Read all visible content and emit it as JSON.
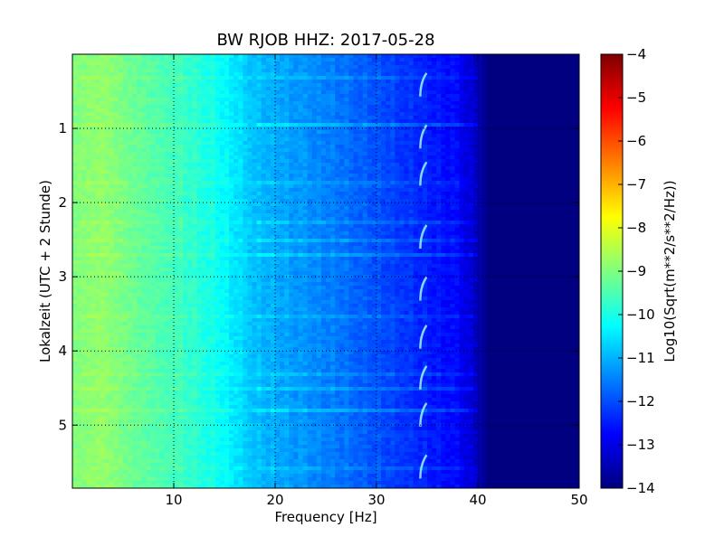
{
  "chart_data": {
    "type": "heatmap",
    "title": "BW RJOB HHZ: 2017-05-28",
    "xlabel": "Frequency [Hz]",
    "ylabel": "Lokalzeit (UTC + 2 Stunde)",
    "colorbar_label": "Log10(Sqrt(m**2/s**2/Hz))",
    "xlim": [
      0,
      50
    ],
    "ylim": [
      5.85,
      0
    ],
    "xticks": [
      10,
      20,
      30,
      40,
      50
    ],
    "xtick_labels": [
      "10",
      "20",
      "30",
      "40",
      "50"
    ],
    "yticks": [
      1,
      2,
      3,
      4,
      5
    ],
    "ytick_labels": [
      "1",
      "2",
      "3",
      "4",
      "5"
    ],
    "colorbar_range": [
      -14,
      -4
    ],
    "colorbar_ticks": [
      -4,
      -5,
      -6,
      -7,
      -8,
      -9,
      -10,
      -11,
      -12,
      -13,
      -14
    ],
    "colorbar_tick_labels": [
      "−4",
      "−5",
      "−6",
      "−7",
      "−8",
      "−9",
      "−10",
      "−11",
      "−12",
      "−13",
      "−14"
    ],
    "colormap": "jet",
    "grid": true,
    "profile": {
      "frequency": [
        0,
        3,
        6,
        10,
        14,
        18,
        22,
        26,
        30,
        34,
        38,
        40,
        41,
        50
      ],
      "value": [
        -9.0,
        -8.8,
        -9.2,
        -9.6,
        -10.1,
        -10.9,
        -11.3,
        -11.6,
        -12.0,
        -12.4,
        -12.8,
        -13.4,
        -14.0,
        -14.0
      ]
    },
    "bright_rows": [
      0.3,
      0.95,
      1.75,
      2.28,
      2.5,
      2.7,
      3.55,
      4.3,
      4.5,
      4.8,
      5.6
    ],
    "line_feature": {
      "frequency": 34.5,
      "events": [
        0.4,
        1.1,
        1.6,
        2.45,
        3.15,
        3.8,
        4.35,
        4.85,
        5.55
      ]
    }
  }
}
